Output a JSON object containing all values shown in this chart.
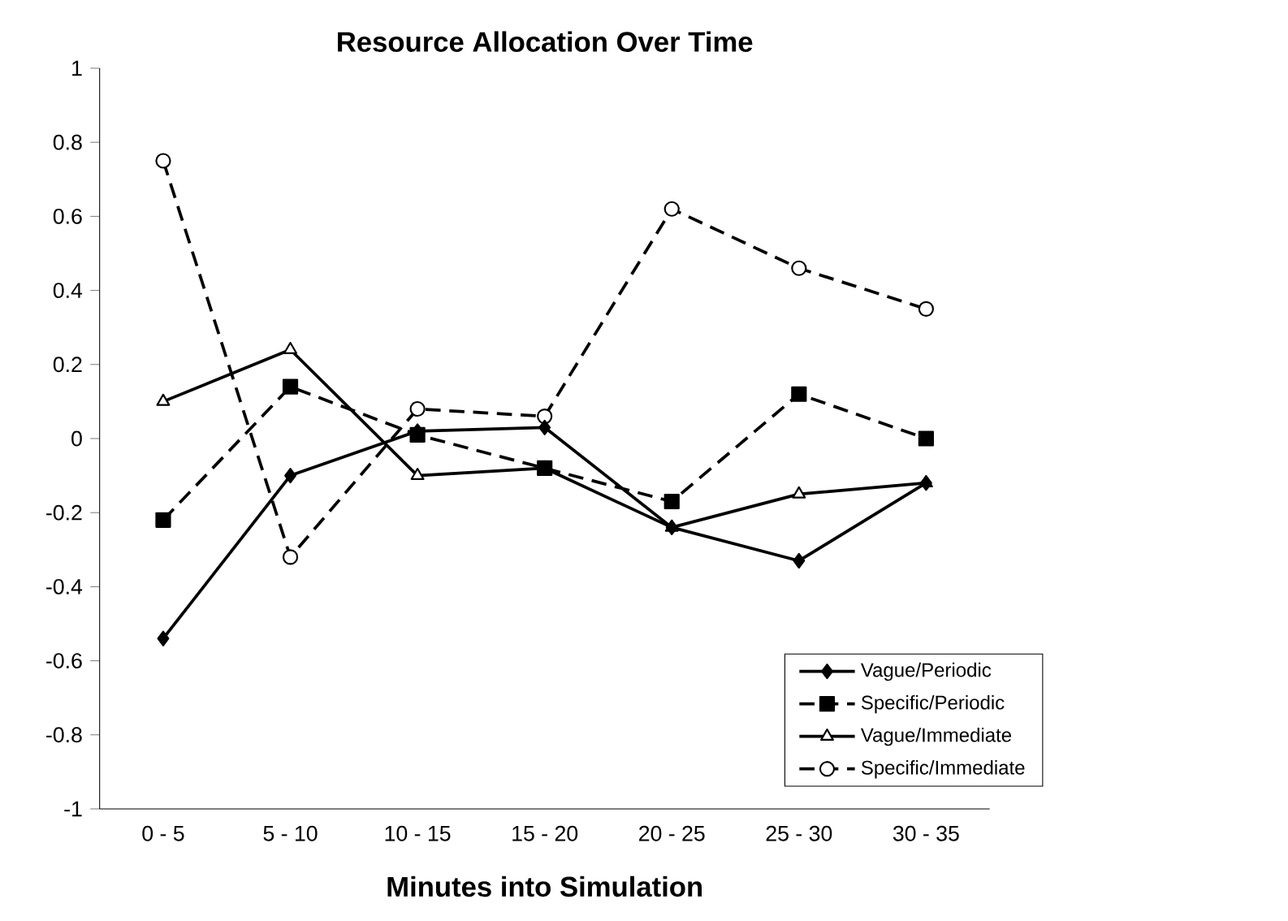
{
  "chart_data": {
    "type": "line",
    "title": "Resource Allocation Over Time",
    "xlabel": "Minutes into Simulation",
    "categories": [
      "0 - 5",
      "5 - 10",
      "10 - 15",
      "15 - 20",
      "20 - 25",
      "25 - 30",
      "30 - 35"
    ],
    "series": [
      {
        "name": "Vague/Periodic",
        "color": "#000000",
        "marker": "diamond",
        "line_style": "solid",
        "values": [
          -0.54,
          -0.1,
          0.02,
          0.03,
          -0.24,
          -0.33,
          -0.12
        ]
      },
      {
        "name": "Specific/Periodic",
        "color": "#000000",
        "marker": "square",
        "line_style": "dashed",
        "values": [
          -0.22,
          0.14,
          0.01,
          -0.08,
          -0.17,
          0.12,
          0.0
        ]
      },
      {
        "name": "Vague/Immediate",
        "color": "#000000",
        "marker": "triangle",
        "line_style": "solid",
        "values": [
          0.1,
          0.24,
          -0.1,
          -0.08,
          -0.24,
          -0.15,
          -0.12
        ]
      },
      {
        "name": "Specific/Immediate",
        "color": "#000000",
        "marker": "circle",
        "line_style": "dashed",
        "values": [
          0.75,
          -0.32,
          0.08,
          0.06,
          0.62,
          0.46,
          0.35
        ]
      }
    ],
    "ylim": [
      -1,
      1
    ],
    "yticks": [
      -1,
      -0.8,
      -0.6,
      -0.4,
      -0.2,
      0,
      0.2,
      0.4,
      0.6,
      0.8,
      1
    ],
    "grid": false,
    "legend": "bottom right"
  }
}
